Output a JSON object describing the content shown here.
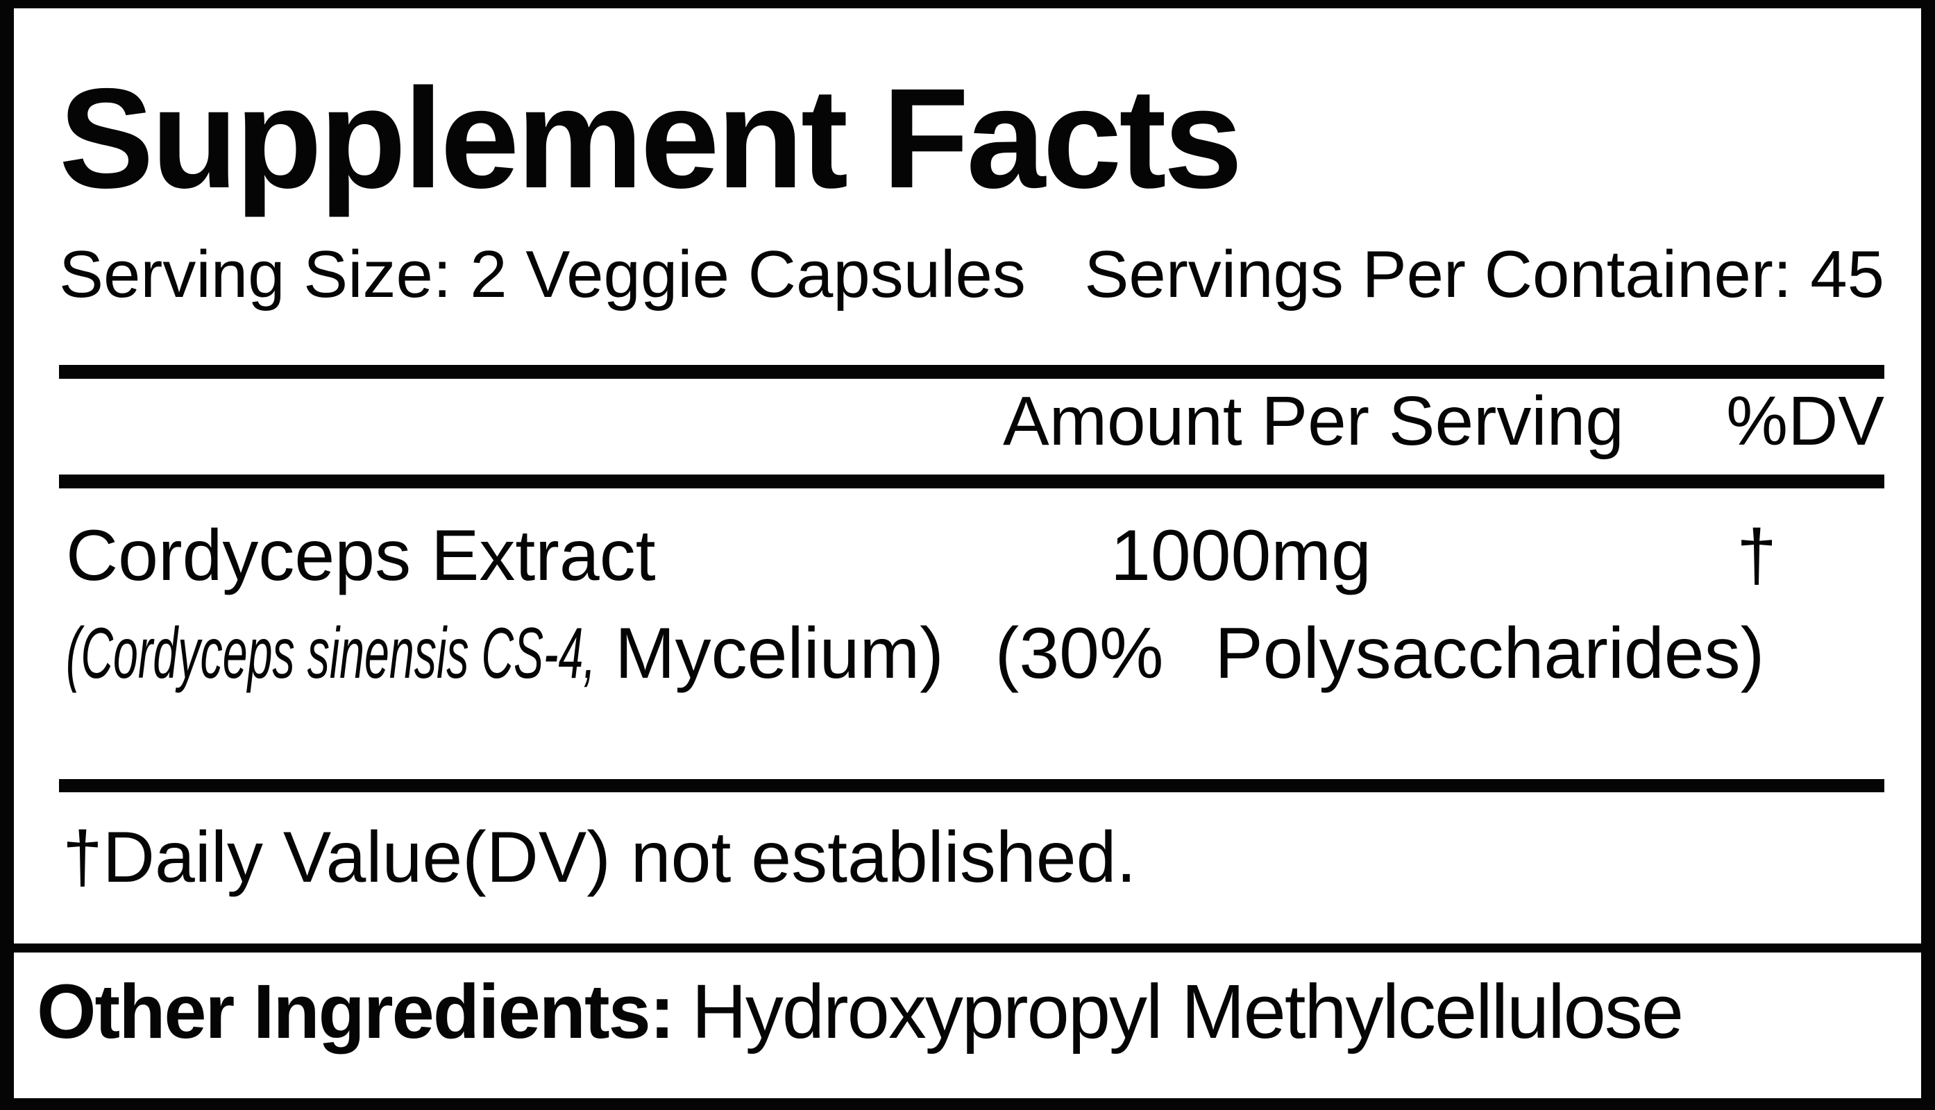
{
  "label": {
    "title": "Supplement Facts",
    "serving_size": "Serving Size: 2 Veggie Capsules",
    "servings_per_container": "Servings Per Container: 45",
    "columns": {
      "amount": "Amount Per Serving",
      "dv": "%DV"
    },
    "ingredients": [
      {
        "name": "Cordyceps Extract",
        "amount": "1000mg",
        "dv": "†",
        "detail_italic": "(Cordyceps sinensis CS-4,",
        "detail_regular": "Mycelium) (30% Polysaccharides)"
      }
    ],
    "footnote": "†Daily Value(DV) not established.",
    "other_ingredients": {
      "label": "Other Ingredients:",
      "value": "Hydroxypropyl Methylcellulose"
    },
    "colors": {
      "text": "#050505",
      "border": "#050505",
      "background": "#ffffff"
    }
  }
}
